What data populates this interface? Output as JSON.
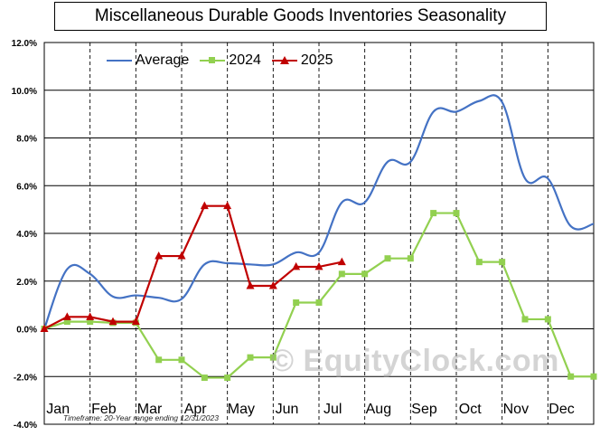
{
  "title": "Miscellaneous Durable Goods Inventories Seasonality",
  "footnote": "Timeframe: 20-Year range ending 12/31/2023",
  "watermark": "© EquityClock.com",
  "colors": {
    "average": "#4472c4",
    "y2024": "#92d050",
    "y2025": "#c00000",
    "grid": "#000000",
    "background": "#ffffff"
  },
  "chart_data": {
    "type": "line",
    "title": "Miscellaneous Durable Goods Inventories Seasonality",
    "legend_position": "top-left",
    "grid": true,
    "xlabel": "",
    "ylabel": "",
    "ylim": [
      -4,
      12
    ],
    "y_ticks": [
      "12.0%",
      "10.0%",
      "8.0%",
      "6.0%",
      "4.0%",
      "2.0%",
      "0.0%",
      "-2.0%",
      "-4.0%"
    ],
    "y_tick_values": [
      12,
      10,
      8,
      6,
      4,
      2,
      0,
      -2,
      -4
    ],
    "categories": [
      "Jan",
      "Feb",
      "Mar",
      "Apr",
      "May",
      "Jun",
      "Jul",
      "Aug",
      "Sep",
      "Oct",
      "Nov",
      "Dec"
    ],
    "xlim": [
      0,
      12
    ],
    "series": [
      {
        "name": "Average",
        "style": "smooth",
        "marker": "none",
        "x": [
          0,
          0.5,
          1,
          1.5,
          2,
          2.5,
          3,
          3.5,
          4,
          4.5,
          5,
          5.5,
          6,
          6.5,
          7,
          7.5,
          8,
          8.5,
          9,
          9.5,
          10,
          10.5,
          11,
          11.5,
          12
        ],
        "y": [
          0,
          2.5,
          2.3,
          1.35,
          1.4,
          1.3,
          1.25,
          2.7,
          2.75,
          2.7,
          2.7,
          3.2,
          3.2,
          5.3,
          5.3,
          7.0,
          7.0,
          9.1,
          9.1,
          9.55,
          9.5,
          6.3,
          6.3,
          4.3,
          4.4
        ]
      },
      {
        "name": "2024",
        "style": "linear",
        "marker": "square",
        "x": [
          0,
          0.5,
          1,
          1.5,
          2,
          2.5,
          3,
          3.5,
          4,
          4.5,
          5,
          5.5,
          6,
          6.5,
          7,
          7.5,
          8,
          8.5,
          9,
          9.5,
          10,
          10.5,
          11,
          11.5,
          12
        ],
        "y": [
          0,
          0.3,
          0.3,
          0.25,
          0.25,
          -1.3,
          -1.3,
          -2.05,
          -2.05,
          -1.2,
          -1.2,
          1.1,
          1.1,
          2.3,
          2.3,
          2.95,
          2.95,
          4.85,
          4.85,
          2.8,
          2.8,
          0.4,
          0.4,
          -2.0,
          -2.0
        ]
      },
      {
        "name": "2025",
        "style": "linear",
        "marker": "triangle",
        "x": [
          0,
          0.5,
          1,
          1.5,
          2,
          2.5,
          3,
          3.5,
          4,
          4.5,
          5,
          5.5,
          6,
          6.5
        ],
        "y": [
          0,
          0.5,
          0.5,
          0.3,
          0.3,
          3.05,
          3.05,
          5.15,
          5.15,
          1.8,
          1.8,
          2.6,
          2.6,
          2.8
        ]
      }
    ]
  }
}
